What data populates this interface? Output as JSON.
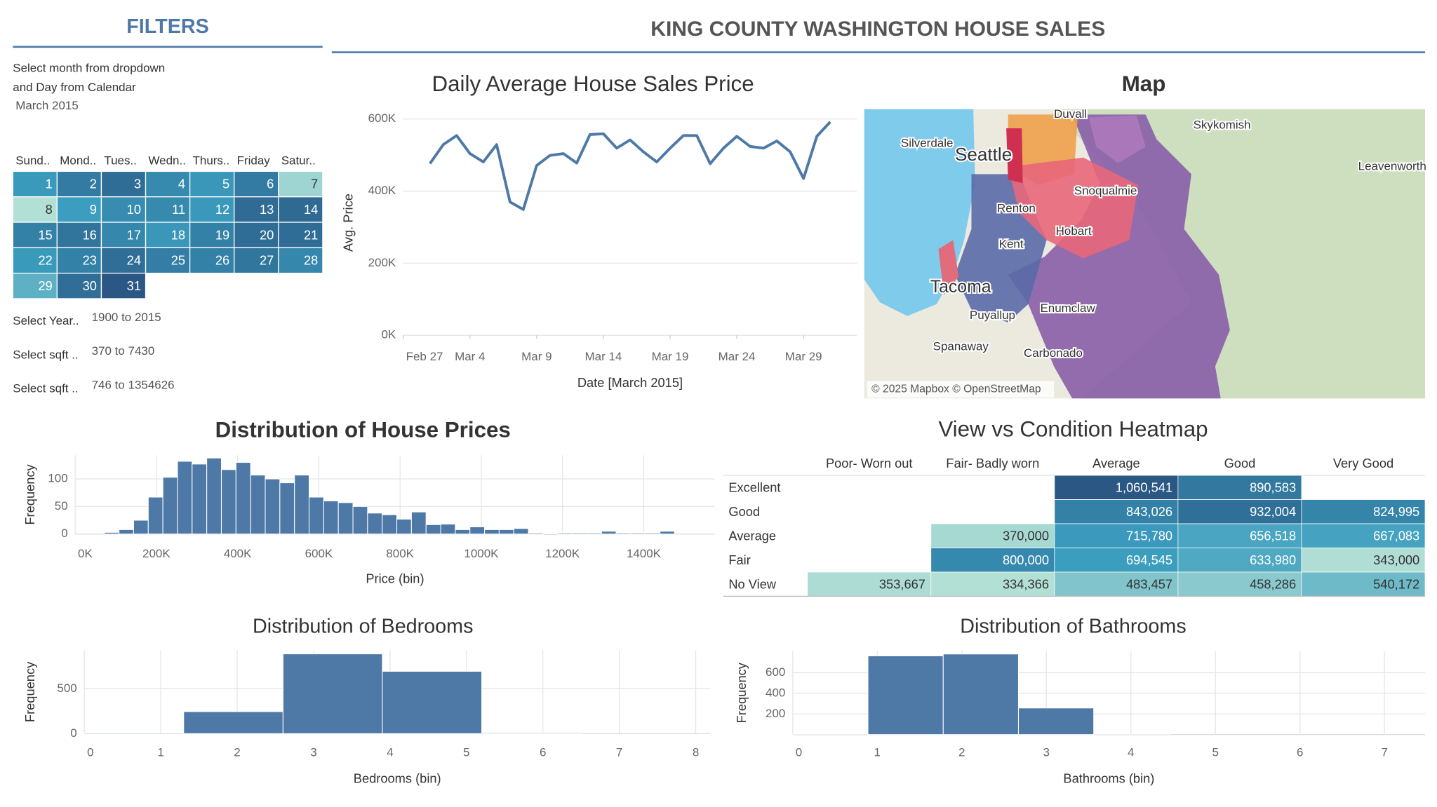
{
  "header": {
    "title": "KING COUNTY WASHINGTON HOUSE SALES"
  },
  "filters": {
    "title": "FILTERS",
    "instructions": [
      "Select month from dropdown",
      "and Day from Calendar"
    ],
    "month": "March 2015",
    "calendar": {
      "weekdays": [
        "Sund..",
        "Mond..",
        "Tues..",
        "Wedn..",
        "Thurs..",
        "Friday",
        "Satur.."
      ],
      "days": [
        1,
        2,
        3,
        4,
        5,
        6,
        7,
        8,
        9,
        10,
        11,
        12,
        13,
        14,
        15,
        16,
        17,
        18,
        19,
        20,
        21,
        22,
        23,
        24,
        25,
        26,
        27,
        28,
        29,
        30,
        31
      ],
      "colors": [
        "#b3e0d5",
        "#3b9dbf",
        "#2a5783"
      ]
    },
    "ranges": [
      {
        "label": "Select Year..",
        "value": "1900 to 2015"
      },
      {
        "label": "Select sqft ..",
        "value": "370 to 7430"
      },
      {
        "label": "Select sqft ..",
        "value": "746 to 1354626"
      }
    ]
  },
  "map": {
    "title": "Map",
    "places": [
      "Silverdale",
      "Seattle",
      "Duvall",
      "Skykomish",
      "Leavenworth",
      "Snoqualmie",
      "Renton",
      "Kent",
      "Hobart",
      "Tacoma",
      "Puyallup",
      "Enumclaw",
      "Spanaway",
      "Carbonado"
    ],
    "attribution": "© 2025 Mapbox © OpenStreetMap"
  },
  "chart_data": [
    {
      "type": "line",
      "title": "Daily Average House Sales Price",
      "x_label": "Date [March 2015]",
      "y_label": "Avg. Price",
      "x": [
        1,
        2,
        3,
        4,
        5,
        6,
        7,
        8,
        9,
        10,
        11,
        12,
        13,
        14,
        15,
        16,
        17,
        18,
        19,
        20,
        21,
        22,
        23,
        24,
        25,
        26,
        27,
        28,
        29,
        30,
        31
      ],
      "values": [
        476000,
        529000,
        554000,
        504000,
        481000,
        529000,
        370000,
        349000,
        471000,
        499000,
        504000,
        478000,
        557000,
        559000,
        519000,
        542000,
        509000,
        481000,
        519000,
        554000,
        554000,
        476000,
        519000,
        552000,
        524000,
        519000,
        539000,
        509000,
        435000,
        552000,
        592000
      ],
      "color": "#4e79a7",
      "xlim": [
        -1,
        33
      ],
      "xticks": [
        {
          "value": -1,
          "label": "Feb 27"
        },
        {
          "value": 4,
          "label": "Mar 4"
        },
        {
          "value": 9,
          "label": "Mar 9"
        },
        {
          "value": 14,
          "label": "Mar 14"
        },
        {
          "value": 19,
          "label": "Mar 19"
        },
        {
          "value": 24,
          "label": "Mar 24"
        },
        {
          "value": 29,
          "label": "Mar 29"
        }
      ],
      "ylim": [
        0,
        625000
      ],
      "yticks": [
        {
          "value": 0,
          "label": "0K"
        },
        {
          "value": 200000,
          "label": "200K"
        },
        {
          "value": 400000,
          "label": "400K"
        },
        {
          "value": 600000,
          "label": "600K"
        }
      ],
      "grid": true
    },
    {
      "type": "histogram",
      "title": "Distribution of House Prices",
      "x_label": "Price (bin)",
      "y_label": "Frequency",
      "bins": [
        72000,
        108000,
        144000,
        180000,
        216000,
        252000,
        288000,
        324000,
        360000,
        396000,
        432000,
        468000,
        504000,
        540000,
        576000,
        612000,
        648000,
        684000,
        720000,
        756000,
        792000,
        828000,
        864000,
        900000,
        936000,
        972000,
        1008000,
        1044000,
        1080000,
        1116000,
        1152000,
        1188000,
        1224000,
        1260000,
        1296000,
        1332000,
        1368000,
        1404000,
        1440000,
        1476000
      ],
      "values": [
        3,
        8,
        25,
        67,
        103,
        132,
        127,
        138,
        117,
        130,
        107,
        100,
        93,
        107,
        67,
        60,
        57,
        50,
        38,
        35,
        27,
        40,
        17,
        18,
        8,
        13,
        8,
        8,
        10,
        2,
        0,
        2,
        2,
        2,
        5,
        2,
        2,
        2,
        5
      ],
      "color": "#4e79a7",
      "xlim": [
        0,
        1575000
      ],
      "xticks": [
        {
          "value": 0,
          "label": "0K"
        },
        {
          "value": 200000,
          "label": "200K"
        },
        {
          "value": 400000,
          "label": "400K"
        },
        {
          "value": 600000,
          "label": "600K"
        },
        {
          "value": 800000,
          "label": "800K"
        },
        {
          "value": 1000000,
          "label": "1000K"
        },
        {
          "value": 1200000,
          "label": "1200K"
        },
        {
          "value": 1400000,
          "label": "1400K"
        }
      ],
      "ylim": [
        0,
        143
      ],
      "yticks": [
        0,
        50,
        100
      ],
      "grid": true
    },
    {
      "type": "histogram",
      "title": "Distribution of Bedrooms",
      "x_label": "Bedrooms (bin)",
      "y_label": "Frequency",
      "bins": [
        0,
        1.3,
        2.6,
        3.9,
        5.2,
        6.5
      ],
      "values": [
        2,
        245,
        888,
        694,
        10
      ],
      "color": "#4e79a7",
      "xlim": [
        0,
        8.19
      ],
      "xticks": [
        0,
        1,
        2,
        3,
        4,
        5,
        6,
        7,
        8
      ],
      "ylim": [
        0,
        928
      ],
      "yticks": [
        0,
        500
      ],
      "grid": true
    },
    {
      "type": "histogram",
      "title": "Distribution of Bathrooms",
      "x_label": "Bathrooms (bin)",
      "y_label": "Frequency",
      "bins": [
        0,
        0.89,
        1.78,
        2.67,
        3.56,
        4.45
      ],
      "values": [
        2,
        764,
        782,
        258,
        2
      ],
      "color": "#4e79a7",
      "xlim": [
        0,
        7.48
      ],
      "xticks": [
        0,
        1,
        2,
        3,
        4,
        5,
        6,
        7
      ],
      "ylim": [
        0,
        809
      ],
      "yticks": [
        200,
        400,
        600
      ],
      "grid": true
    },
    {
      "type": "heatmap",
      "title": "View vs Condition Heatmap",
      "columns": [
        "Poor- Worn out",
        "Fair- Badly worn",
        "Average",
        "Good",
        "Very Good"
      ],
      "rows": [
        "Excellent",
        "Good",
        "Average",
        "Fair",
        "No View"
      ],
      "values": [
        [
          null,
          null,
          1060541,
          890583,
          null
        ],
        [
          null,
          null,
          843026,
          932004,
          824995
        ],
        [
          null,
          370000,
          715780,
          656518,
          667083
        ],
        [
          null,
          800000,
          694545,
          633980,
          343000
        ],
        [
          353667,
          334366,
          483457,
          458286,
          540172
        ]
      ],
      "value_labels": [
        [
          null,
          null,
          "1,060,541",
          "890,583",
          null
        ],
        [
          null,
          null,
          "843,026",
          "932,004",
          "824,995"
        ],
        [
          null,
          "370,000",
          "715,780",
          "656,518",
          "667,083"
        ],
        [
          null,
          "800,000",
          "694,545",
          "633,980",
          "343,000"
        ],
        [
          "353,667",
          "334,366",
          "483,457",
          "458,286",
          "540,172"
        ]
      ],
      "colors": [
        "#b3e0d5",
        "#3b9dbf",
        "#2a5783"
      ]
    }
  ]
}
